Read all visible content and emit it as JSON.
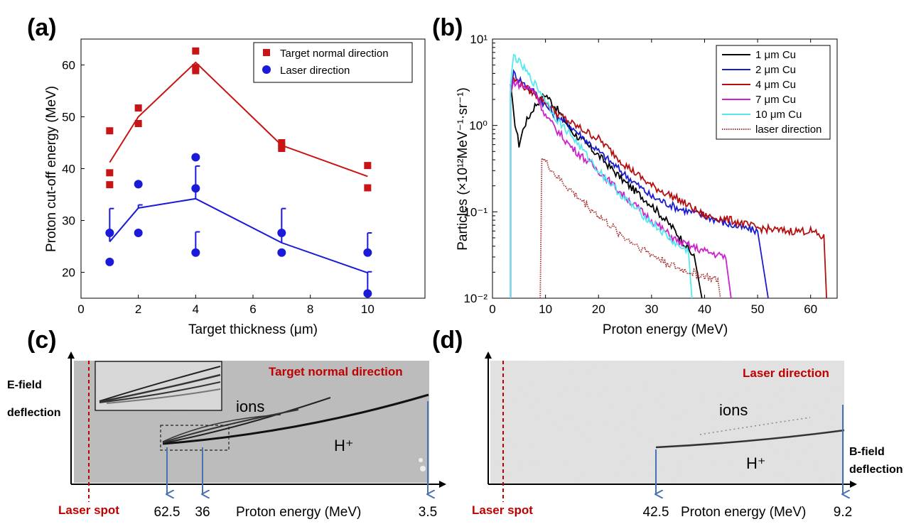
{
  "panels": {
    "a": {
      "label": "(a)",
      "xlabel": "Target thickness (μm)",
      "ylabel": "Proton cut-off energy (MeV)",
      "legend": [
        "Target normal direction",
        "Laser direction"
      ]
    },
    "b": {
      "label": "(b)",
      "xlabel": "Proton energy (MeV)",
      "ylabel": "Particles (×10¹²MeV⁻¹·sr⁻¹)",
      "legend": [
        "1 μm Cu",
        "2 μm Cu",
        "4 μm Cu",
        "7 μm Cu",
        "10 μm Cu",
        "laser direction"
      ]
    },
    "c": {
      "label": "(c)",
      "title": "Target normal direction",
      "yaxis_label_1": "E-field",
      "yaxis_label_2": "deflection",
      "spot_label": "Laser spot",
      "ions_label": "ions",
      "proton_label": "H⁺",
      "xaxis_label": "Proton energy (MeV)",
      "marks": [
        "62.5",
        "36",
        "3.5"
      ]
    },
    "d": {
      "label": "(d)",
      "title": "Laser direction",
      "spot_label": "Laser spot",
      "ions_label": "ions",
      "proton_label": "H⁺",
      "bfield_label_1": "B-field",
      "bfield_label_2": "deflection",
      "xaxis_label": "Proton energy (MeV)",
      "marks": [
        "42.5",
        "9.2"
      ]
    }
  },
  "colors": {
    "red": "#c81414",
    "blue": "#1a1ad8",
    "black": "#000000",
    "darkblue": "#1c1ccf",
    "darkred": "#b40f0f",
    "magenta": "#cc22cc",
    "cyan": "#55e8ee",
    "dotted": "#a83232",
    "arrow": "#4a72b0"
  },
  "chart_data": [
    {
      "type": "scatter",
      "xlim": [
        0,
        12
      ],
      "ylim": [
        15,
        65
      ],
      "xticks": [
        0,
        2,
        4,
        6,
        8,
        10
      ],
      "yticks": [
        20,
        30,
        40,
        50,
        60
      ],
      "series": [
        {
          "name": "Target normal direction",
          "points": [
            [
              1,
              47.3
            ],
            [
              1,
              39.2
            ],
            [
              1,
              36.9
            ],
            [
              2,
              51.7
            ],
            [
              2,
              48.7
            ],
            [
              4,
              62.7
            ],
            [
              4,
              59.5
            ],
            [
              4,
              58.9
            ],
            [
              7,
              45.0
            ],
            [
              7,
              44.3
            ],
            [
              7,
              43.9
            ],
            [
              10,
              40.6
            ],
            [
              10,
              36.3
            ]
          ],
          "fit": [
            [
              1,
              41.2
            ],
            [
              2,
              50.0
            ],
            [
              4,
              60.5
            ],
            [
              7,
              44.5
            ],
            [
              10,
              38.5
            ]
          ]
        },
        {
          "name": "Laser direction",
          "points": [
            [
              1,
              27.6
            ],
            [
              1,
              22.0
            ],
            [
              2,
              37.0
            ],
            [
              2,
              27.6
            ],
            [
              4,
              42.2
            ],
            [
              4,
              36.2
            ],
            [
              4,
              23.8
            ],
            [
              7,
              27.6
            ],
            [
              7,
              23.8
            ],
            [
              10,
              23.8
            ],
            [
              10,
              15.9
            ]
          ],
          "fit": [
            [
              1,
              25.9
            ],
            [
              2,
              32.4
            ],
            [
              4,
              34.2
            ],
            [
              7,
              25.7
            ],
            [
              10,
              19.9
            ]
          ],
          "errorbars": [
            [
              1,
              25.9,
              32.3
            ],
            [
              2,
              32.4,
              33.0
            ],
            [
              4,
              34.2,
              40.5
            ],
            [
              4,
              23.8,
              27.8
            ],
            [
              7,
              25.7,
              32.3
            ],
            [
              10,
              23.8,
              27.6
            ],
            [
              10,
              15.9,
              20.1
            ]
          ]
        }
      ]
    },
    {
      "type": "line",
      "yscale": "log",
      "xlim": [
        0,
        65
      ],
      "ylim": [
        0.01,
        10
      ],
      "xticks": [
        0,
        10,
        20,
        30,
        40,
        50,
        60
      ],
      "yticks": [
        0.01,
        0.1,
        1,
        10
      ],
      "ytick_labels": [
        "10⁻²",
        "10⁻¹",
        "10⁰",
        "10¹"
      ],
      "series": [
        {
          "name": "1 μm Cu",
          "x": [
            3.4,
            4,
            5,
            6,
            8,
            10,
            12,
            15,
            20,
            25,
            30,
            34,
            36,
            38,
            39.5
          ],
          "y": [
            3.0,
            1.3,
            0.6,
            1.0,
            1.7,
            2.3,
            1.6,
            0.85,
            0.45,
            0.22,
            0.12,
            0.065,
            0.045,
            0.03,
            0.01
          ]
        },
        {
          "name": "2 μm Cu",
          "x": [
            3.4,
            4,
            6,
            8,
            10,
            12,
            15,
            20,
            25,
            30,
            35,
            40,
            45,
            50,
            52
          ],
          "y": [
            2.5,
            4.0,
            3.0,
            2.4,
            1.7,
            1.3,
            0.95,
            0.5,
            0.27,
            0.15,
            0.11,
            0.09,
            0.07,
            0.06,
            0.01
          ]
        },
        {
          "name": "4 μm Cu",
          "x": [
            3.4,
            4,
            6,
            8,
            10,
            12,
            15,
            20,
            25,
            30,
            35,
            40,
            45,
            50,
            55,
            60,
            62.5,
            63
          ],
          "y": [
            2.3,
            3.4,
            2.8,
            2.3,
            1.9,
            1.4,
            1.05,
            0.7,
            0.35,
            0.2,
            0.14,
            0.09,
            0.08,
            0.065,
            0.06,
            0.06,
            0.05,
            0.01
          ]
        },
        {
          "name": "7 μm Cu",
          "x": [
            3.4,
            4,
            6,
            8,
            10,
            12,
            15,
            20,
            25,
            30,
            35,
            40,
            44,
            45
          ],
          "y": [
            2.4,
            3.2,
            2.8,
            2.5,
            1.3,
            0.9,
            0.55,
            0.3,
            0.15,
            0.08,
            0.045,
            0.035,
            0.03,
            0.01
          ]
        },
        {
          "name": "10 μm Cu",
          "x": [
            3.4,
            4,
            6,
            8,
            10,
            12,
            15,
            20,
            25,
            30,
            35,
            37,
            37.6
          ],
          "y": [
            2.8,
            6.5,
            4.5,
            3.0,
            2.0,
            1.2,
            0.75,
            0.3,
            0.14,
            0.075,
            0.04,
            0.035,
            0.01
          ]
        },
        {
          "name": "laser direction",
          "x": [
            9,
            9.3,
            10,
            12,
            15,
            20,
            25,
            30,
            35,
            40,
            42.5,
            43
          ],
          "y": [
            0.01,
            0.42,
            0.38,
            0.26,
            0.17,
            0.09,
            0.05,
            0.032,
            0.022,
            0.018,
            0.016,
            0.01
          ]
        }
      ]
    }
  ]
}
